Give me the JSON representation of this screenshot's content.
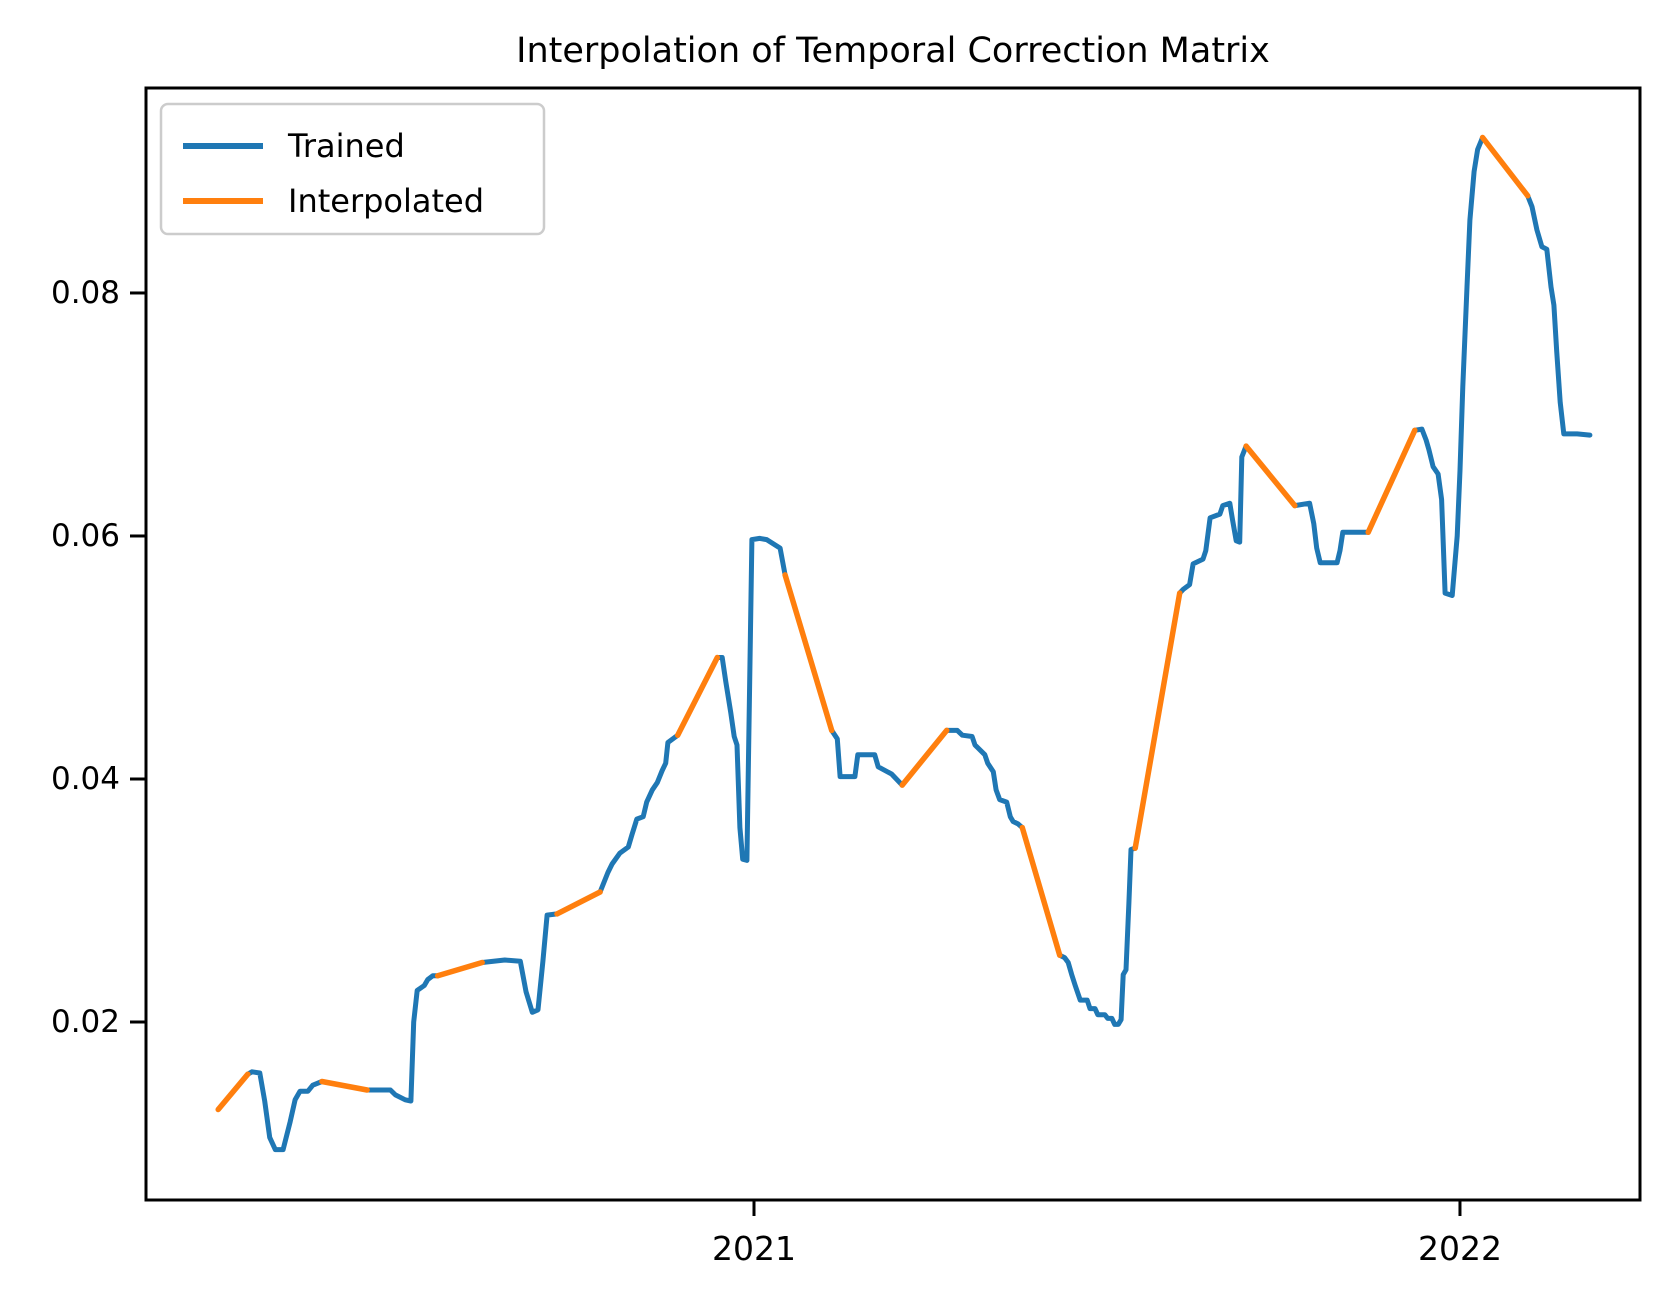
{
  "title": "Interpolation of Temporal Correction Matrix",
  "figure": {
    "background": "#ffffff",
    "spine_color": "#000000"
  },
  "legend": {
    "items": [
      {
        "label": "Trained",
        "color": "#1f77b4"
      },
      {
        "label": "Interpolated",
        "color": "#ff7f0e"
      }
    ]
  },
  "x_axis": {
    "ticks": [
      {
        "label": "2021",
        "value": 2021
      },
      {
        "label": "2022",
        "value": 2022
      }
    ],
    "range": [
      2020.1388,
      2022.255
    ]
  },
  "y_axis": {
    "ticks": [
      {
        "label": "0.02",
        "value": 0.02
      },
      {
        "label": "0.04",
        "value": 0.04
      },
      {
        "label": "0.06",
        "value": 0.06
      },
      {
        "label": "0.08",
        "value": 0.08
      }
    ],
    "range": [
      0.00535,
      0.09687
    ]
  },
  "chart_data": {
    "type": "line",
    "title": "Interpolation of Temporal Correction Matrix",
    "xlabel": "",
    "ylabel": "",
    "x_unit": "decimal_year",
    "xlim": [
      2020.1388,
      2022.255
    ],
    "ylim": [
      0.00535,
      0.09687
    ],
    "grid": false,
    "legend_position": "upper left",
    "series": [
      {
        "name": "Trained",
        "color": "#1f77b4"
      },
      {
        "name": "Interpolated",
        "color": "#ff7f0e"
      }
    ],
    "segment_flag_meaning": "third element: segment from previous point is T=Trained(blue) or I=Interpolated(orange)",
    "points": [
      [
        2020.241,
        0.0128,
        "T"
      ],
      [
        2020.283,
        0.0157,
        "I"
      ],
      [
        2020.289,
        0.0159,
        "T"
      ],
      [
        2020.3,
        0.0158,
        "T"
      ],
      [
        2020.307,
        0.0135,
        "T"
      ],
      [
        2020.314,
        0.0105,
        "T"
      ],
      [
        2020.322,
        0.0095,
        "T"
      ],
      [
        2020.333,
        0.0095,
        "T"
      ],
      [
        2020.343,
        0.0118,
        "T"
      ],
      [
        2020.35,
        0.0136,
        "T"
      ],
      [
        2020.357,
        0.0143,
        "T"
      ],
      [
        2020.368,
        0.0143,
        "T"
      ],
      [
        2020.375,
        0.0148,
        "T"
      ],
      [
        2020.388,
        0.0151,
        "T"
      ],
      [
        2020.452,
        0.0144,
        "I"
      ],
      [
        2020.485,
        0.0144,
        "T"
      ],
      [
        2020.492,
        0.014,
        "T"
      ],
      [
        2020.506,
        0.0136,
        "T"
      ],
      [
        2020.514,
        0.0135,
        "T"
      ],
      [
        2020.518,
        0.02,
        "T"
      ],
      [
        2020.523,
        0.0226,
        "T"
      ],
      [
        2020.533,
        0.023,
        "T"
      ],
      [
        2020.538,
        0.0235,
        "T"
      ],
      [
        2020.545,
        0.0238,
        "T"
      ],
      [
        2020.552,
        0.0238,
        "T"
      ],
      [
        2020.615,
        0.0249,
        "I"
      ],
      [
        2020.647,
        0.0251,
        "T"
      ],
      [
        2020.669,
        0.025,
        "T"
      ],
      [
        2020.677,
        0.0225,
        "T"
      ],
      [
        2020.686,
        0.0208,
        "T"
      ],
      [
        2020.694,
        0.021,
        "T"
      ],
      [
        2020.701,
        0.025,
        "T"
      ],
      [
        2020.707,
        0.0288,
        "T"
      ],
      [
        2020.721,
        0.0289,
        "T"
      ],
      [
        2020.782,
        0.0307,
        "I"
      ],
      [
        2020.793,
        0.0323,
        "T"
      ],
      [
        2020.799,
        0.033,
        "T"
      ],
      [
        2020.81,
        0.0339,
        "T"
      ],
      [
        2020.822,
        0.0344,
        "T"
      ],
      [
        2020.827,
        0.0354,
        "T"
      ],
      [
        2020.834,
        0.0367,
        "T"
      ],
      [
        2020.843,
        0.0369,
        "T"
      ],
      [
        2020.848,
        0.0381,
        "T"
      ],
      [
        2020.856,
        0.0391,
        "T"
      ],
      [
        2020.863,
        0.0397,
        "T"
      ],
      [
        2020.87,
        0.0407,
        "T"
      ],
      [
        2020.875,
        0.0413,
        "T"
      ],
      [
        2020.878,
        0.043,
        "T"
      ],
      [
        2020.892,
        0.0436,
        "T"
      ],
      [
        2020.948,
        0.05,
        "I"
      ],
      [
        2020.955,
        0.05,
        "T"
      ],
      [
        2020.96,
        0.048,
        "T"
      ],
      [
        2020.967,
        0.0455,
        "T"
      ],
      [
        2020.972,
        0.0435,
        "T"
      ],
      [
        2020.976,
        0.0428,
        "T"
      ],
      [
        2020.98,
        0.036,
        "T"
      ],
      [
        2020.984,
        0.0334,
        "T"
      ],
      [
        2020.99,
        0.0333,
        "T"
      ],
      [
        2020.997,
        0.0597,
        "T"
      ],
      [
        2021.008,
        0.0598,
        "T"
      ],
      [
        2021.018,
        0.0597,
        "T"
      ],
      [
        2021.037,
        0.059,
        "T"
      ],
      [
        2021.044,
        0.0568,
        "T"
      ],
      [
        2021.11,
        0.044,
        "I"
      ],
      [
        2021.118,
        0.0433,
        "T"
      ],
      [
        2021.122,
        0.0402,
        "T"
      ],
      [
        2021.143,
        0.0402,
        "T"
      ],
      [
        2021.147,
        0.042,
        "T"
      ],
      [
        2021.171,
        0.042,
        "T"
      ],
      [
        2021.176,
        0.041,
        "T"
      ],
      [
        2021.195,
        0.0404,
        "T"
      ],
      [
        2021.21,
        0.0395,
        "T"
      ],
      [
        2021.273,
        0.044,
        "I"
      ],
      [
        2021.288,
        0.044,
        "T"
      ],
      [
        2021.295,
        0.0436,
        "T"
      ],
      [
        2021.309,
        0.0435,
        "T"
      ],
      [
        2021.313,
        0.0428,
        "T"
      ],
      [
        2021.327,
        0.042,
        "T"
      ],
      [
        2021.331,
        0.0413,
        "T"
      ],
      [
        2021.339,
        0.0406,
        "T"
      ],
      [
        2021.343,
        0.0391,
        "T"
      ],
      [
        2021.348,
        0.0383,
        "T"
      ],
      [
        2021.358,
        0.0381,
        "T"
      ],
      [
        2021.363,
        0.0369,
        "T"
      ],
      [
        2021.367,
        0.0365,
        "T"
      ],
      [
        2021.374,
        0.0363,
        "T"
      ],
      [
        2021.38,
        0.036,
        "T"
      ],
      [
        2021.433,
        0.0255,
        "I"
      ],
      [
        2021.44,
        0.0253,
        "T"
      ],
      [
        2021.445,
        0.0249,
        "T"
      ],
      [
        2021.45,
        0.0239,
        "T"
      ],
      [
        2021.455,
        0.023,
        "T"
      ],
      [
        2021.462,
        0.0218,
        "T"
      ],
      [
        2021.472,
        0.0218,
        "T"
      ],
      [
        2021.476,
        0.0211,
        "T"
      ],
      [
        2021.483,
        0.0211,
        "T"
      ],
      [
        2021.487,
        0.0206,
        "T"
      ],
      [
        2021.497,
        0.0206,
        "T"
      ],
      [
        2021.501,
        0.0203,
        "T"
      ],
      [
        2021.507,
        0.0203,
        "T"
      ],
      [
        2021.511,
        0.0198,
        "T"
      ],
      [
        2021.516,
        0.0198,
        "T"
      ],
      [
        2021.52,
        0.0202,
        "T"
      ],
      [
        2021.523,
        0.0239,
        "T"
      ],
      [
        2021.527,
        0.0243,
        "T"
      ],
      [
        2021.531,
        0.0298,
        "T"
      ],
      [
        2021.534,
        0.0342,
        "T"
      ],
      [
        2021.54,
        0.0343,
        "T"
      ],
      [
        2021.603,
        0.0553,
        "I"
      ],
      [
        2021.608,
        0.0556,
        "T"
      ],
      [
        2021.617,
        0.056,
        "T"
      ],
      [
        2021.622,
        0.0577,
        "T"
      ],
      [
        2021.636,
        0.0581,
        "T"
      ],
      [
        2021.64,
        0.0588,
        "T"
      ],
      [
        2021.646,
        0.0615,
        "T"
      ],
      [
        2021.66,
        0.0618,
        "T"
      ],
      [
        2021.664,
        0.0625,
        "T"
      ],
      [
        2021.674,
        0.0627,
        "T"
      ],
      [
        2021.678,
        0.0613,
        "T"
      ],
      [
        2021.683,
        0.0596,
        "T"
      ],
      [
        2021.688,
        0.0595,
        "T"
      ],
      [
        2021.691,
        0.0665,
        "T"
      ],
      [
        2021.697,
        0.0674,
        "T"
      ],
      [
        2021.766,
        0.0625,
        "I"
      ],
      [
        2021.787,
        0.0627,
        "T"
      ],
      [
        2021.793,
        0.061,
        "T"
      ],
      [
        2021.797,
        0.059,
        "T"
      ],
      [
        2021.802,
        0.0578,
        "T"
      ],
      [
        2021.826,
        0.0578,
        "T"
      ],
      [
        2021.83,
        0.0588,
        "T"
      ],
      [
        2021.834,
        0.0603,
        "T"
      ],
      [
        2021.87,
        0.0603,
        "T"
      ],
      [
        2021.936,
        0.0687,
        "I"
      ],
      [
        2021.946,
        0.0688,
        "T"
      ],
      [
        2021.952,
        0.0679,
        "T"
      ],
      [
        2021.956,
        0.0671,
        "T"
      ],
      [
        2021.962,
        0.0657,
        "T"
      ],
      [
        2021.969,
        0.0651,
        "T"
      ],
      [
        2021.974,
        0.063,
        "T"
      ],
      [
        2021.979,
        0.0553,
        "T"
      ],
      [
        2021.989,
        0.0551,
        "T"
      ],
      [
        2021.996,
        0.06,
        "T"
      ],
      [
        2022.0,
        0.0654,
        "T"
      ],
      [
        2022.004,
        0.0723,
        "T"
      ],
      [
        2022.01,
        0.0805,
        "T"
      ],
      [
        2022.014,
        0.086,
        "T"
      ],
      [
        2022.02,
        0.09,
        "T"
      ],
      [
        2022.025,
        0.0918,
        "T"
      ],
      [
        2022.032,
        0.0928,
        "T"
      ],
      [
        2022.096,
        0.088,
        "I"
      ],
      [
        2022.102,
        0.0871,
        "T"
      ],
      [
        2022.109,
        0.0852,
        "T"
      ],
      [
        2022.116,
        0.0838,
        "T"
      ],
      [
        2022.123,
        0.0836,
        "T"
      ],
      [
        2022.129,
        0.0805,
        "T"
      ],
      [
        2022.133,
        0.079,
        "T"
      ],
      [
        2022.137,
        0.0752,
        "T"
      ],
      [
        2022.142,
        0.071,
        "T"
      ],
      [
        2022.147,
        0.0684,
        "T"
      ],
      [
        2022.166,
        0.0684,
        "T"
      ],
      [
        2022.184,
        0.0683,
        "T"
      ]
    ]
  }
}
